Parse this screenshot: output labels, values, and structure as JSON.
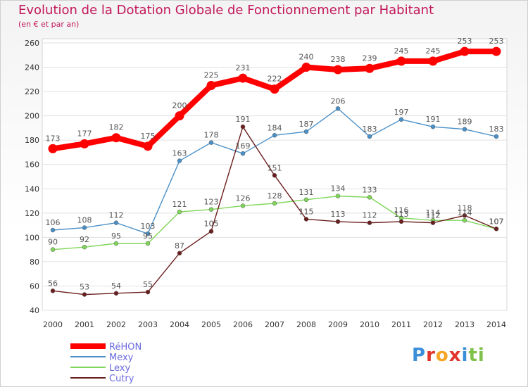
{
  "chart_data": {
    "type": "line",
    "title": "Evolution de la Dotation Globale de Fonctionnement par Habitant",
    "subtitle": "(en € et par an)",
    "xlabel": "",
    "ylabel": "",
    "x": [
      "2000",
      "2001",
      "2002",
      "2003",
      "2004",
      "2005",
      "2006",
      "2007",
      "2008",
      "2009",
      "2010",
      "2011",
      "2012",
      "2013",
      "2014"
    ],
    "ylim": [
      40,
      260
    ],
    "yticks": [
      40,
      60,
      80,
      100,
      120,
      140,
      160,
      180,
      200,
      220,
      240,
      260
    ],
    "grid": true,
    "legend_position": "bottom-left",
    "series": [
      {
        "name": "RéHON",
        "color": "#ff0000",
        "values": [
          173,
          177,
          182,
          175,
          200,
          225,
          231,
          222,
          240,
          238,
          239,
          245,
          245,
          253,
          253
        ]
      },
      {
        "name": "Mexy",
        "color": "#4a90c8",
        "values": [
          106,
          108,
          112,
          103,
          163,
          178,
          169,
          184,
          187,
          206,
          183,
          197,
          191,
          189,
          183
        ]
      },
      {
        "name": "Lexy",
        "color": "#7fd65a",
        "values": [
          90,
          92,
          95,
          95,
          121,
          123,
          126,
          128,
          131,
          134,
          133,
          116,
          114,
          114,
          107
        ]
      },
      {
        "name": "Cutry",
        "color": "#6b1e1e",
        "values": [
          56,
          53,
          54,
          55,
          87,
          105,
          191,
          151,
          115,
          113,
          112,
          113,
          112,
          118,
          107
        ]
      }
    ]
  },
  "logo": {
    "text": "Proxiti",
    "colors": [
      "#3b8fd9",
      "#e0342c",
      "#f5a623",
      "#e0342c",
      "#3b8fd9",
      "#7fc14a",
      "#7fc14a"
    ]
  }
}
